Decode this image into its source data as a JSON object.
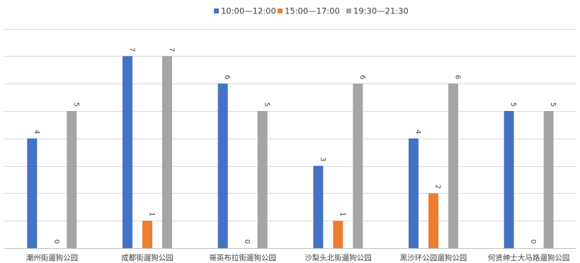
{
  "chart_data": {
    "type": "bar",
    "categories": [
      "潮州街遛狗公园",
      "成都街遛狗公园",
      "哥英布拉街遛狗公园",
      "沙梨头北街遛狗公园",
      "黑沙环公园遛狗公园",
      "何贤绅士大马路遛狗公园"
    ],
    "series": [
      {
        "name": "10:00—12:00",
        "values": [
          4,
          7,
          6,
          3,
          4,
          5
        ],
        "color": "#4472c4"
      },
      {
        "name": "15:00—17:00",
        "values": [
          0,
          1,
          0,
          1,
          2,
          0
        ],
        "color": "#ed7d31"
      },
      {
        "name": "19:30—21:30",
        "values": [
          5,
          7,
          5,
          6,
          6,
          5
        ],
        "color": "#a5a5a5"
      }
    ],
    "ylim": [
      0,
      8
    ],
    "grid": true,
    "legend_position": "top-center",
    "data_labels": true,
    "data_label_rotation": "vertical"
  }
}
